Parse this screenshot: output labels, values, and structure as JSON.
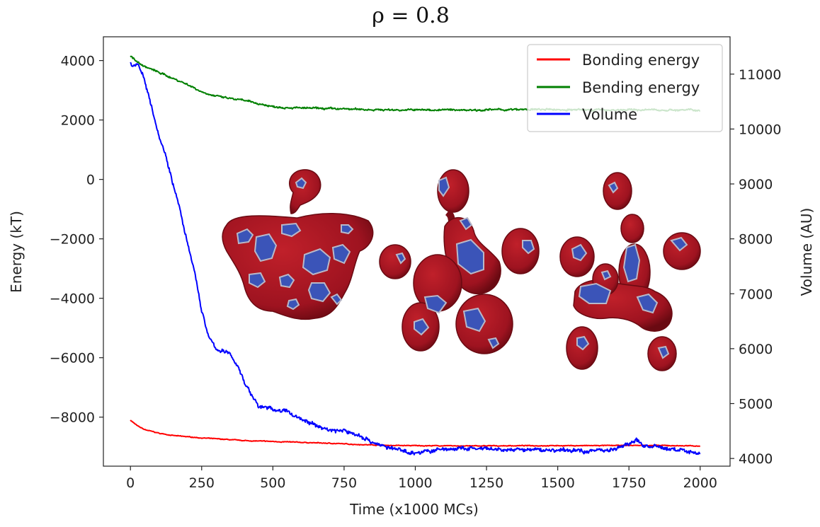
{
  "chart_data": {
    "type": "line",
    "title": "ρ = 0.8",
    "xlabel": "Time (x1000 MCs)",
    "ylabel": "Energy (kT)",
    "y2label": "Volume (AU)",
    "xlim": [
      -95,
      2105
    ],
    "ylim": [
      -9650,
      4800
    ],
    "y2lim": [
      3860,
      11680
    ],
    "x_ticks": [
      0,
      250,
      500,
      750,
      1000,
      1250,
      1500,
      1750,
      2000
    ],
    "x_tick_labels": [
      "0",
      "250",
      "500",
      "750",
      "1000",
      "1250",
      "1500",
      "1750",
      "2000"
    ],
    "y_ticks": [
      4000,
      2000,
      0,
      -2000,
      -4000,
      -6000,
      -8000
    ],
    "y_tick_labels": [
      "4000",
      "2000",
      "0",
      "−2000",
      "−4000",
      "−6000",
      "−8000"
    ],
    "y2_ticks": [
      11000,
      10000,
      9000,
      8000,
      7000,
      6000,
      5000,
      4000
    ],
    "y2_tick_labels": [
      "11000",
      "10000",
      "9000",
      "8000",
      "7000",
      "6000",
      "5000",
      "4000"
    ],
    "grid": false,
    "legend_position": "top-right",
    "series": [
      {
        "name": "Bonding energy",
        "color": "#ff0000",
        "axis": "left",
        "noise": 12,
        "x": [
          0,
          25,
          50,
          100,
          150,
          200,
          250,
          300,
          400,
          500,
          600,
          700,
          800,
          900,
          1000,
          1200,
          1400,
          1600,
          1800,
          2000
        ],
        "y": [
          -8100,
          -8300,
          -8420,
          -8540,
          -8620,
          -8660,
          -8700,
          -8730,
          -8790,
          -8820,
          -8850,
          -8880,
          -8920,
          -8950,
          -8960,
          -8970,
          -8960,
          -8960,
          -8950,
          -8970
        ]
      },
      {
        "name": "Bending energy",
        "color": "#008000",
        "axis": "left",
        "noise": 30,
        "x": [
          0,
          25,
          50,
          100,
          150,
          200,
          250,
          300,
          350,
          400,
          450,
          500,
          600,
          700,
          800,
          900,
          1000,
          1200,
          1400,
          1600,
          1800,
          2000
        ],
        "y": [
          4150,
          3950,
          3800,
          3600,
          3400,
          3200,
          2950,
          2800,
          2720,
          2650,
          2550,
          2450,
          2400,
          2380,
          2360,
          2340,
          2340,
          2340,
          2350,
          2340,
          2340,
          2330
        ]
      },
      {
        "name": "Volume",
        "color": "#0000ff",
        "axis": "right",
        "noise": 35,
        "x": [
          0,
          10,
          25,
          50,
          75,
          100,
          125,
          150,
          175,
          200,
          225,
          250,
          275,
          300,
          325,
          350,
          375,
          400,
          425,
          450,
          500,
          550,
          600,
          650,
          700,
          750,
          800,
          850,
          900,
          950,
          1000,
          1100,
          1200,
          1300,
          1400,
          1500,
          1600,
          1700,
          1750,
          1775,
          1800,
          1900,
          2000
        ],
        "y": [
          11200,
          11150,
          11200,
          10900,
          10400,
          9900,
          9500,
          9000,
          8500,
          7900,
          7400,
          6700,
          6200,
          6000,
          5950,
          5900,
          5700,
          5400,
          5150,
          4950,
          4900,
          4850,
          4720,
          4600,
          4520,
          4500,
          4430,
          4300,
          4200,
          4150,
          4100,
          4170,
          4180,
          4150,
          4160,
          4150,
          4140,
          4170,
          4260,
          4340,
          4240,
          4170,
          4100
        ]
      }
    ]
  }
}
